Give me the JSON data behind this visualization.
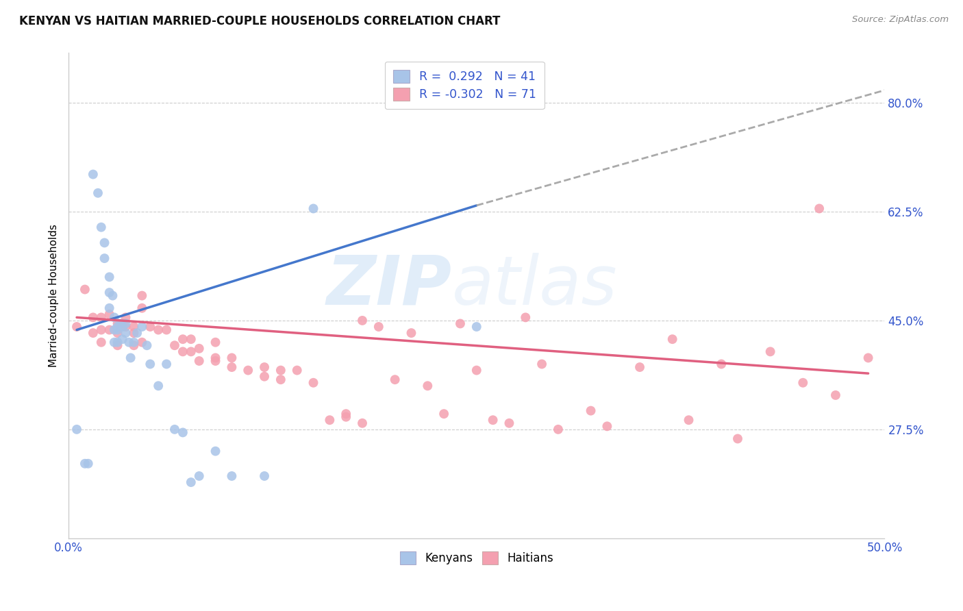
{
  "title": "KENYAN VS HAITIAN MARRIED-COUPLE HOUSEHOLDS CORRELATION CHART",
  "source": "Source: ZipAtlas.com",
  "ylabel": "Married-couple Households",
  "yticks": [
    "27.5%",
    "45.0%",
    "62.5%",
    "80.0%"
  ],
  "ytick_vals": [
    0.275,
    0.45,
    0.625,
    0.8
  ],
  "xlim": [
    0.0,
    0.5
  ],
  "ylim": [
    0.1,
    0.88
  ],
  "kenyan_color": "#a8c4e8",
  "haitian_color": "#f4a0b0",
  "kenyan_line_color": "#4477cc",
  "haitian_line_color": "#e06080",
  "dashed_line_color": "#aaaaaa",
  "legend_r_kenyan": "0.292",
  "legend_n_kenyan": "41",
  "legend_r_haitian": "-0.302",
  "legend_n_haitian": "71",
  "kenyan_x": [
    0.005,
    0.01,
    0.012,
    0.015,
    0.018,
    0.02,
    0.022,
    0.022,
    0.025,
    0.025,
    0.025,
    0.027,
    0.028,
    0.028,
    0.028,
    0.03,
    0.03,
    0.03,
    0.032,
    0.033,
    0.033,
    0.035,
    0.035,
    0.037,
    0.038,
    0.04,
    0.042,
    0.045,
    0.048,
    0.05,
    0.055,
    0.06,
    0.065,
    0.07,
    0.075,
    0.08,
    0.09,
    0.1,
    0.12,
    0.15,
    0.25
  ],
  "kenyan_y": [
    0.275,
    0.22,
    0.22,
    0.685,
    0.655,
    0.6,
    0.575,
    0.55,
    0.52,
    0.495,
    0.47,
    0.49,
    0.455,
    0.435,
    0.415,
    0.44,
    0.435,
    0.415,
    0.445,
    0.44,
    0.42,
    0.445,
    0.43,
    0.415,
    0.39,
    0.415,
    0.43,
    0.44,
    0.41,
    0.38,
    0.345,
    0.38,
    0.275,
    0.27,
    0.19,
    0.2,
    0.24,
    0.2,
    0.2,
    0.63,
    0.44
  ],
  "haitian_x": [
    0.005,
    0.01,
    0.015,
    0.015,
    0.02,
    0.02,
    0.02,
    0.025,
    0.025,
    0.03,
    0.03,
    0.03,
    0.035,
    0.035,
    0.04,
    0.04,
    0.04,
    0.045,
    0.045,
    0.045,
    0.05,
    0.055,
    0.06,
    0.065,
    0.07,
    0.07,
    0.075,
    0.075,
    0.08,
    0.08,
    0.09,
    0.09,
    0.09,
    0.1,
    0.1,
    0.11,
    0.12,
    0.12,
    0.13,
    0.13,
    0.14,
    0.15,
    0.16,
    0.17,
    0.17,
    0.18,
    0.18,
    0.19,
    0.2,
    0.21,
    0.22,
    0.23,
    0.24,
    0.25,
    0.26,
    0.27,
    0.28,
    0.29,
    0.3,
    0.32,
    0.33,
    0.35,
    0.37,
    0.38,
    0.4,
    0.41,
    0.43,
    0.45,
    0.46,
    0.47,
    0.49
  ],
  "haitian_y": [
    0.44,
    0.5,
    0.455,
    0.43,
    0.455,
    0.435,
    0.415,
    0.46,
    0.435,
    0.445,
    0.43,
    0.41,
    0.455,
    0.44,
    0.44,
    0.43,
    0.41,
    0.49,
    0.47,
    0.415,
    0.44,
    0.435,
    0.435,
    0.41,
    0.42,
    0.4,
    0.42,
    0.4,
    0.405,
    0.385,
    0.415,
    0.39,
    0.385,
    0.39,
    0.375,
    0.37,
    0.375,
    0.36,
    0.37,
    0.355,
    0.37,
    0.35,
    0.29,
    0.295,
    0.3,
    0.45,
    0.285,
    0.44,
    0.355,
    0.43,
    0.345,
    0.3,
    0.445,
    0.37,
    0.29,
    0.285,
    0.455,
    0.38,
    0.275,
    0.305,
    0.28,
    0.375,
    0.42,
    0.29,
    0.38,
    0.26,
    0.4,
    0.35,
    0.63,
    0.33,
    0.39
  ],
  "kenyan_line_x": [
    0.005,
    0.25
  ],
  "kenyan_line_y": [
    0.435,
    0.635
  ],
  "haitian_line_x": [
    0.005,
    0.49
  ],
  "haitian_line_y": [
    0.455,
    0.365
  ],
  "dashed_line_x": [
    0.25,
    0.52
  ],
  "dashed_line_y": [
    0.635,
    0.835
  ]
}
